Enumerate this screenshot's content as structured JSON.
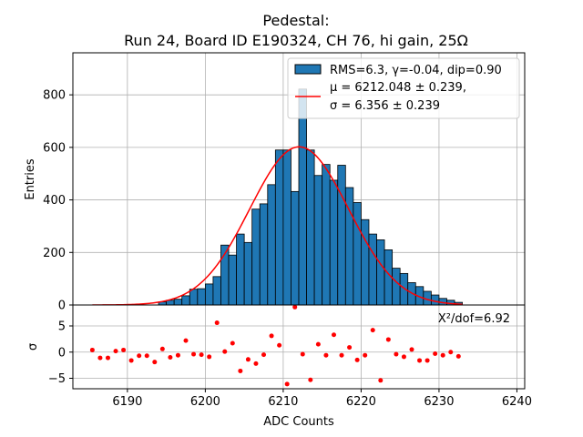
{
  "chart_data": [
    {
      "type": "bar",
      "title": "Pedestal:",
      "subtitle": "Run 24, Board ID E190324, CH 76, hi gain, 25Ω",
      "xlabel": "",
      "ylabel": "Entries",
      "xlim": [
        6183,
        6241
      ],
      "ylim": [
        0,
        960
      ],
      "yticks": [
        0,
        200,
        400,
        600,
        800
      ],
      "grid": true,
      "legend_placement": "top-right",
      "bin_width": 1,
      "bin_edges_start": 6194,
      "values": [
        12,
        18,
        22,
        35,
        60,
        62,
        80,
        108,
        228,
        190,
        270,
        238,
        365,
        385,
        458,
        590,
        590,
        432,
        822,
        590,
        493,
        535,
        475,
        532,
        447,
        390,
        325,
        270,
        248,
        210,
        140,
        120,
        85,
        70,
        52,
        38,
        25,
        18,
        10
      ],
      "series": [
        {
          "name": "RMS=6.3, γ=-0.04, dip=0.90",
          "kind": "histogram",
          "color": "#1f77b4",
          "edgecolor": "#000000"
        },
        {
          "name_line1": "μ = 6212.048 ± 0.239,",
          "name_line2": "σ = 6.356 ± 0.239",
          "kind": "gaussian",
          "color": "#ff0000",
          "mu": 6212.048,
          "sigma": 6.356,
          "amplitude": 602,
          "x_range": [
            6185.5,
            6233
          ]
        }
      ]
    },
    {
      "type": "scatter",
      "xlabel": "ADC Counts",
      "ylabel": "σ",
      "xlim": [
        6183,
        6241
      ],
      "ylim": [
        -7,
        9
      ],
      "yticks": [
        -5,
        0,
        5
      ],
      "xticks": [
        6190,
        6200,
        6210,
        6220,
        6230,
        6240
      ],
      "grid": true,
      "annotation": "X²/dof=6.92",
      "series": [
        {
          "color": "#ff0000",
          "points": [
            [
              6185.5,
              0.4
            ],
            [
              6186.5,
              -1.1
            ],
            [
              6187.5,
              -1.1
            ],
            [
              6188.5,
              0.2
            ],
            [
              6189.5,
              0.4
            ],
            [
              6190.5,
              -1.6
            ],
            [
              6191.5,
              -0.7
            ],
            [
              6192.5,
              -0.7
            ],
            [
              6193.5,
              -1.9
            ],
            [
              6194.5,
              0.6
            ],
            [
              6195.5,
              -1.0
            ],
            [
              6196.5,
              -0.6
            ],
            [
              6197.5,
              2.2
            ],
            [
              6198.5,
              -0.4
            ],
            [
              6199.5,
              -0.5
            ],
            [
              6200.5,
              -0.9
            ],
            [
              6201.5,
              5.6
            ],
            [
              6202.5,
              0.1
            ],
            [
              6203.5,
              1.7
            ],
            [
              6204.5,
              -3.6
            ],
            [
              6205.5,
              -1.4
            ],
            [
              6206.5,
              -2.2
            ],
            [
              6207.5,
              -0.5
            ],
            [
              6208.5,
              3.1
            ],
            [
              6209.5,
              1.3
            ],
            [
              6210.5,
              -6.1
            ],
            [
              6211.5,
              8.6
            ],
            [
              6212.5,
              -0.4
            ],
            [
              6213.5,
              -5.3
            ],
            [
              6214.5,
              1.5
            ],
            [
              6215.5,
              -0.6
            ],
            [
              6216.5,
              3.3
            ],
            [
              6217.5,
              -0.6
            ],
            [
              6218.5,
              0.9
            ],
            [
              6219.5,
              -1.5
            ],
            [
              6220.5,
              -0.6
            ],
            [
              6221.5,
              4.2
            ],
            [
              6222.5,
              -5.4
            ],
            [
              6223.5,
              2.4
            ],
            [
              6224.5,
              -0.4
            ],
            [
              6225.5,
              -0.9
            ],
            [
              6226.5,
              0.5
            ],
            [
              6227.5,
              -1.6
            ],
            [
              6228.5,
              -1.6
            ],
            [
              6229.5,
              -0.3
            ],
            [
              6230.5,
              -0.6
            ],
            [
              6231.5,
              0.0
            ],
            [
              6232.5,
              -0.8
            ]
          ]
        }
      ]
    }
  ]
}
